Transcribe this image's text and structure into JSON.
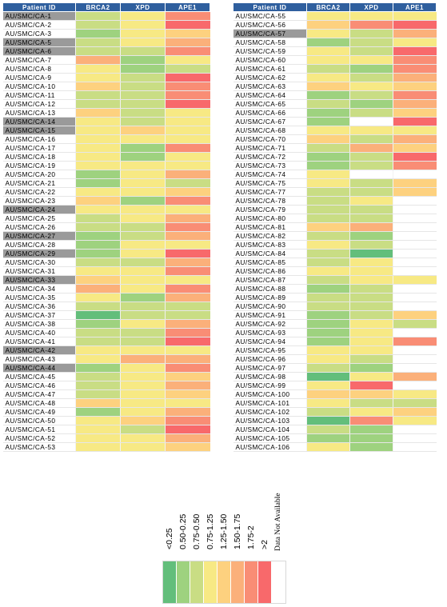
{
  "chart_data": {
    "type": "heatmap",
    "columns": [
      "Patient ID",
      "BRCA2",
      "XPD",
      "APE1"
    ],
    "legend": {
      "items": [
        {
          "label": "<0.25",
          "color": "#63be7b"
        },
        {
          "label": "0.50-0.25",
          "color": "#9ed27f"
        },
        {
          "label": "0.75-0.50",
          "color": "#c9dd84"
        },
        {
          "label": "0.75-1.25",
          "color": "#f7e984"
        },
        {
          "label": "1.25-1.50",
          "color": "#fdd17f"
        },
        {
          "label": "1.50-1.75",
          "color": "#fbb07a"
        },
        {
          "label": "1.75-2",
          "color": "#f98d75"
        },
        {
          ">2": null,
          "label": ">2",
          "color": "#f8696b"
        },
        {
          "label": "Data Not Available",
          "color": "#ffffff"
        }
      ]
    },
    "tables": [
      {
        "rows": [
          {
            "id": "AU/SMC/CA-1",
            "highlighted": true,
            "BRCA2": 2,
            "XPD": 3,
            "APE1": 6
          },
          {
            "id": "AU/SMC/CA-2",
            "highlighted": false,
            "BRCA2": 2,
            "XPD": 3,
            "APE1": 7
          },
          {
            "id": "AU/SMC/CA-3",
            "highlighted": false,
            "BRCA2": 1,
            "XPD": 3,
            "APE1": 4
          },
          {
            "id": "AU/SMC/CA-5",
            "highlighted": true,
            "BRCA2": 2,
            "XPD": 3,
            "APE1": 5
          },
          {
            "id": "AU/SMC/CA-6",
            "highlighted": true,
            "BRCA2": 2,
            "XPD": 2,
            "APE1": 6
          },
          {
            "id": "AU/SMC/CA-7",
            "highlighted": false,
            "BRCA2": 5,
            "XPD": 1,
            "APE1": 3
          },
          {
            "id": "AU/SMC/CA-8",
            "highlighted": false,
            "BRCA2": 3,
            "XPD": 1,
            "APE1": 2
          },
          {
            "id": "AU/SMC/CA-9",
            "highlighted": false,
            "BRCA2": 3,
            "XPD": 2,
            "APE1": 7
          },
          {
            "id": "AU/SMC/CA-10",
            "highlighted": false,
            "BRCA2": 4,
            "XPD": 2,
            "APE1": 6
          },
          {
            "id": "AU/SMC/CA-11",
            "highlighted": false,
            "BRCA2": 2,
            "XPD": 2,
            "APE1": 6
          },
          {
            "id": "AU/SMC/CA-12",
            "highlighted": false,
            "BRCA2": 2,
            "XPD": 2,
            "APE1": 7
          },
          {
            "id": "AU/SMC/CA-13",
            "highlighted": false,
            "BRCA2": 4,
            "XPD": 2,
            "APE1": 3
          },
          {
            "id": "AU/SMC/CA-14",
            "highlighted": true,
            "BRCA2": 3,
            "XPD": 2,
            "APE1": 3
          },
          {
            "id": "AU/SMC/CA-15",
            "highlighted": true,
            "BRCA2": 3,
            "XPD": 4,
            "APE1": 3
          },
          {
            "id": "AU/SMC/CA-16",
            "highlighted": false,
            "BRCA2": 3,
            "XPD": 3,
            "APE1": 3
          },
          {
            "id": "AU/SMC/CA-17",
            "highlighted": false,
            "BRCA2": 3,
            "XPD": 1,
            "APE1": 6
          },
          {
            "id": "AU/SMC/CA-18",
            "highlighted": false,
            "BRCA2": 3,
            "XPD": 1,
            "APE1": 3
          },
          {
            "id": "AU/SMC/CA-19",
            "highlighted": false,
            "BRCA2": 3,
            "XPD": 3,
            "APE1": 3
          },
          {
            "id": "AU/SMC/CA-20",
            "highlighted": false,
            "BRCA2": 1,
            "XPD": 3,
            "APE1": 5
          },
          {
            "id": "AU/SMC/CA-21",
            "highlighted": false,
            "BRCA2": 1,
            "XPD": 3,
            "APE1": 2
          },
          {
            "id": "AU/SMC/CA-22",
            "highlighted": false,
            "BRCA2": 3,
            "XPD": 3,
            "APE1": 4
          },
          {
            "id": "AU/SMC/CA-23",
            "highlighted": false,
            "BRCA2": 4,
            "XPD": 1,
            "APE1": 6
          },
          {
            "id": "AU/SMC/CA-24",
            "highlighted": true,
            "BRCA2": 3,
            "XPD": 3,
            "APE1": 3
          },
          {
            "id": "AU/SMC/CA-25",
            "highlighted": false,
            "BRCA2": 2,
            "XPD": 3,
            "APE1": 5
          },
          {
            "id": "AU/SMC/CA-26",
            "highlighted": false,
            "BRCA2": 2,
            "XPD": 2,
            "APE1": 6
          },
          {
            "id": "AU/SMC/CA-27",
            "highlighted": true,
            "BRCA2": 1,
            "XPD": 2,
            "APE1": 5
          },
          {
            "id": "AU/SMC/CA-28",
            "highlighted": false,
            "BRCA2": 1,
            "XPD": 3,
            "APE1": 3
          },
          {
            "id": "AU/SMC/CA-29",
            "highlighted": true,
            "BRCA2": 1,
            "XPD": 3,
            "APE1": 7
          },
          {
            "id": "AU/SMC/CA-30",
            "highlighted": false,
            "BRCA2": 2,
            "XPD": 2,
            "APE1": 5
          },
          {
            "id": "AU/SMC/CA-31",
            "highlighted": false,
            "BRCA2": 3,
            "XPD": 3,
            "APE1": 6
          },
          {
            "id": "AU/SMC/CA-33",
            "highlighted": true,
            "BRCA2": 4,
            "XPD": 3,
            "APE1": 3
          },
          {
            "id": "AU/SMC/CA-34",
            "highlighted": false,
            "BRCA2": 5,
            "XPD": 3,
            "APE1": 6
          },
          {
            "id": "AU/SMC/CA-35",
            "highlighted": false,
            "BRCA2": 3,
            "XPD": 1,
            "APE1": 5
          },
          {
            "id": "AU/SMC/CA-36",
            "highlighted": false,
            "BRCA2": 2,
            "XPD": 2,
            "APE1": 2
          },
          {
            "id": "AU/SMC/CA-37",
            "highlighted": false,
            "BRCA2": 0,
            "XPD": 2,
            "APE1": 2
          },
          {
            "id": "AU/SMC/CA-38",
            "highlighted": false,
            "BRCA2": 1,
            "XPD": 3,
            "APE1": 5
          },
          {
            "id": "AU/SMC/CA-40",
            "highlighted": false,
            "BRCA2": 2,
            "XPD": 2,
            "APE1": 6
          },
          {
            "id": "AU/SMC/CA-41",
            "highlighted": false,
            "BRCA2": 2,
            "XPD": 2,
            "APE1": 7
          },
          {
            "id": "AU/SMC/CA-42",
            "highlighted": true,
            "BRCA2": 3,
            "XPD": 3,
            "APE1": 3
          },
          {
            "id": "AU/SMC/CA-43",
            "highlighted": false,
            "BRCA2": 3,
            "XPD": 5,
            "APE1": 5
          },
          {
            "id": "AU/SMC/CA-44",
            "highlighted": true,
            "BRCA2": 1,
            "XPD": 3,
            "APE1": 6
          },
          {
            "id": "AU/SMC/CA-45",
            "highlighted": false,
            "BRCA2": 2,
            "XPD": 3,
            "APE1": 4
          },
          {
            "id": "AU/SMC/CA-46",
            "highlighted": false,
            "BRCA2": 2,
            "XPD": 3,
            "APE1": 5
          },
          {
            "id": "AU/SMC/CA-47",
            "highlighted": false,
            "BRCA2": 2,
            "XPD": 3,
            "APE1": 4
          },
          {
            "id": "AU/SMC/CA-48",
            "highlighted": false,
            "BRCA2": 4,
            "XPD": 3,
            "APE1": 3
          },
          {
            "id": "AU/SMC/CA-49",
            "highlighted": false,
            "BRCA2": 1,
            "XPD": 3,
            "APE1": 5
          },
          {
            "id": "AU/SMC/CA-50",
            "highlighted": false,
            "BRCA2": 3,
            "XPD": 4,
            "APE1": 6
          },
          {
            "id": "AU/SMC/CA-51",
            "highlighted": false,
            "BRCA2": 3,
            "XPD": 2,
            "APE1": 7
          },
          {
            "id": "AU/SMC/CA-52",
            "highlighted": false,
            "BRCA2": 3,
            "XPD": 3,
            "APE1": 5
          },
          {
            "id": "AU/SMC/CA-53",
            "highlighted": false,
            "BRCA2": 3,
            "XPD": 3,
            "APE1": 4
          }
        ]
      },
      {
        "rows": [
          {
            "id": "AU/SMC/CA-55",
            "highlighted": false,
            "BRCA2": 3,
            "XPD": 3,
            "APE1": 3
          },
          {
            "id": "AU/SMC/CA-56",
            "highlighted": false,
            "BRCA2": 4,
            "XPD": 6,
            "APE1": 7
          },
          {
            "id": "AU/SMC/CA-57",
            "highlighted": true,
            "BRCA2": 3,
            "XPD": 2,
            "APE1": 5
          },
          {
            "id": "AU/SMC/CA-58",
            "highlighted": false,
            "BRCA2": 1,
            "XPD": 2,
            "APE1": 3
          },
          {
            "id": "AU/SMC/CA-59",
            "highlighted": false,
            "BRCA2": 3,
            "XPD": 2,
            "APE1": 7
          },
          {
            "id": "AU/SMC/CA-60",
            "highlighted": false,
            "BRCA2": 3,
            "XPD": 3,
            "APE1": 6
          },
          {
            "id": "AU/SMC/CA-61",
            "highlighted": false,
            "BRCA2": 2,
            "XPD": 1,
            "APE1": 6
          },
          {
            "id": "AU/SMC/CA-62",
            "highlighted": false,
            "BRCA2": 3,
            "XPD": 2,
            "APE1": 5
          },
          {
            "id": "AU/SMC/CA-63",
            "highlighted": false,
            "BRCA2": 4,
            "XPD": 3,
            "APE1": 4
          },
          {
            "id": "AU/SMC/CA-64",
            "highlighted": false,
            "BRCA2": 1,
            "XPD": 2,
            "APE1": 6
          },
          {
            "id": "AU/SMC/CA-65",
            "highlighted": false,
            "BRCA2": 2,
            "XPD": 1,
            "APE1": 5
          },
          {
            "id": "AU/SMC/CA-66",
            "highlighted": false,
            "BRCA2": 1,
            "XPD": 2,
            "APE1": 4
          },
          {
            "id": "AU/SMC/CA-67",
            "highlighted": false,
            "BRCA2": 1,
            "XPD": -1,
            "APE1": 7
          },
          {
            "id": "AU/SMC/CA-68",
            "highlighted": false,
            "BRCA2": 3,
            "XPD": 3,
            "APE1": 3
          },
          {
            "id": "AU/SMC/CA-70",
            "highlighted": false,
            "BRCA2": 4,
            "XPD": 2,
            "APE1": 5
          },
          {
            "id": "AU/SMC/CA-71",
            "highlighted": false,
            "BRCA2": 2,
            "XPD": 5,
            "APE1": 4
          },
          {
            "id": "AU/SMC/CA-72",
            "highlighted": false,
            "BRCA2": 1,
            "XPD": 2,
            "APE1": 7
          },
          {
            "id": "AU/SMC/CA-73",
            "highlighted": false,
            "BRCA2": 1,
            "XPD": 2,
            "APE1": 6
          },
          {
            "id": "AU/SMC/CA-74",
            "highlighted": false,
            "BRCA2": 3,
            "XPD": -1,
            "APE1": -1
          },
          {
            "id": "AU/SMC/CA-75",
            "highlighted": false,
            "BRCA2": 3,
            "XPD": 2,
            "APE1": 4
          },
          {
            "id": "AU/SMC/CA-77",
            "highlighted": false,
            "BRCA2": 2,
            "XPD": 2,
            "APE1": 4
          },
          {
            "id": "AU/SMC/CA-78",
            "highlighted": false,
            "BRCA2": 2,
            "XPD": 3,
            "APE1": -1
          },
          {
            "id": "AU/SMC/CA-79",
            "highlighted": false,
            "BRCA2": 2,
            "XPD": 2,
            "APE1": -1
          },
          {
            "id": "AU/SMC/CA-80",
            "highlighted": false,
            "BRCA2": 2,
            "XPD": 2,
            "APE1": -1
          },
          {
            "id": "AU/SMC/CA-81",
            "highlighted": false,
            "BRCA2": 4,
            "XPD": 5,
            "APE1": -1
          },
          {
            "id": "AU/SMC/CA-82",
            "highlighted": false,
            "BRCA2": 2,
            "XPD": 1,
            "APE1": -1
          },
          {
            "id": "AU/SMC/CA-83",
            "highlighted": false,
            "BRCA2": 3,
            "XPD": 2,
            "APE1": -1
          },
          {
            "id": "AU/SMC/CA-84",
            "highlighted": false,
            "BRCA2": 2,
            "XPD": 0,
            "APE1": -1
          },
          {
            "id": "AU/SMC/CA-85",
            "highlighted": false,
            "BRCA2": 2,
            "XPD": 3,
            "APE1": -1
          },
          {
            "id": "AU/SMC/CA-86",
            "highlighted": false,
            "BRCA2": 3,
            "XPD": 3,
            "APE1": -1
          },
          {
            "id": "AU/SMC/CA-87",
            "highlighted": false,
            "BRCA2": 2,
            "XPD": 3,
            "APE1": 3
          },
          {
            "id": "AU/SMC/CA-88",
            "highlighted": false,
            "BRCA2": 1,
            "XPD": 2,
            "APE1": -1
          },
          {
            "id": "AU/SMC/CA-89",
            "highlighted": false,
            "BRCA2": 2,
            "XPD": 2,
            "APE1": -1
          },
          {
            "id": "AU/SMC/CA-90",
            "highlighted": false,
            "BRCA2": 2,
            "XPD": 2,
            "APE1": -1
          },
          {
            "id": "AU/SMC/CA-91",
            "highlighted": false,
            "BRCA2": 1,
            "XPD": 2,
            "APE1": 4
          },
          {
            "id": "AU/SMC/CA-92",
            "highlighted": false,
            "BRCA2": 1,
            "XPD": 3,
            "APE1": 2
          },
          {
            "id": "AU/SMC/CA-93",
            "highlighted": false,
            "BRCA2": 1,
            "XPD": 3,
            "APE1": -1
          },
          {
            "id": "AU/SMC/CA-94",
            "highlighted": false,
            "BRCA2": 1,
            "XPD": 3,
            "APE1": 6
          },
          {
            "id": "AU/SMC/CA-95",
            "highlighted": false,
            "BRCA2": 3,
            "XPD": 3,
            "APE1": -1
          },
          {
            "id": "AU/SMC/CA-96",
            "highlighted": false,
            "BRCA2": 3,
            "XPD": 2,
            "APE1": -1
          },
          {
            "id": "AU/SMC/CA-97",
            "highlighted": false,
            "BRCA2": 2,
            "XPD": 1,
            "APE1": -1
          },
          {
            "id": "AU/SMC/CA-98",
            "highlighted": false,
            "BRCA2": 0,
            "XPD": 3,
            "APE1": 5
          },
          {
            "id": "AU/SMC/CA-99",
            "highlighted": false,
            "BRCA2": 3,
            "XPD": 7,
            "APE1": -1
          },
          {
            "id": "AU/SMC/CA-100",
            "highlighted": false,
            "BRCA2": 4,
            "XPD": 4,
            "APE1": 3
          },
          {
            "id": "AU/SMC/CA-101",
            "highlighted": false,
            "BRCA2": 3,
            "XPD": 2,
            "APE1": 2
          },
          {
            "id": "AU/SMC/CA-102",
            "highlighted": false,
            "BRCA2": 2,
            "XPD": 3,
            "APE1": 4
          },
          {
            "id": "AU/SMC/CA-103",
            "highlighted": false,
            "BRCA2": 0,
            "XPD": 6,
            "APE1": 3
          },
          {
            "id": "AU/SMC/CA-104",
            "highlighted": false,
            "BRCA2": 2,
            "XPD": 1,
            "APE1": -1
          },
          {
            "id": "AU/SMC/CA-105",
            "highlighted": false,
            "BRCA2": 1,
            "XPD": 1,
            "APE1": -1
          },
          {
            "id": "AU/SMC/CA-106",
            "highlighted": false,
            "BRCA2": 3,
            "XPD": 1,
            "APE1": -1
          }
        ]
      }
    ]
  }
}
